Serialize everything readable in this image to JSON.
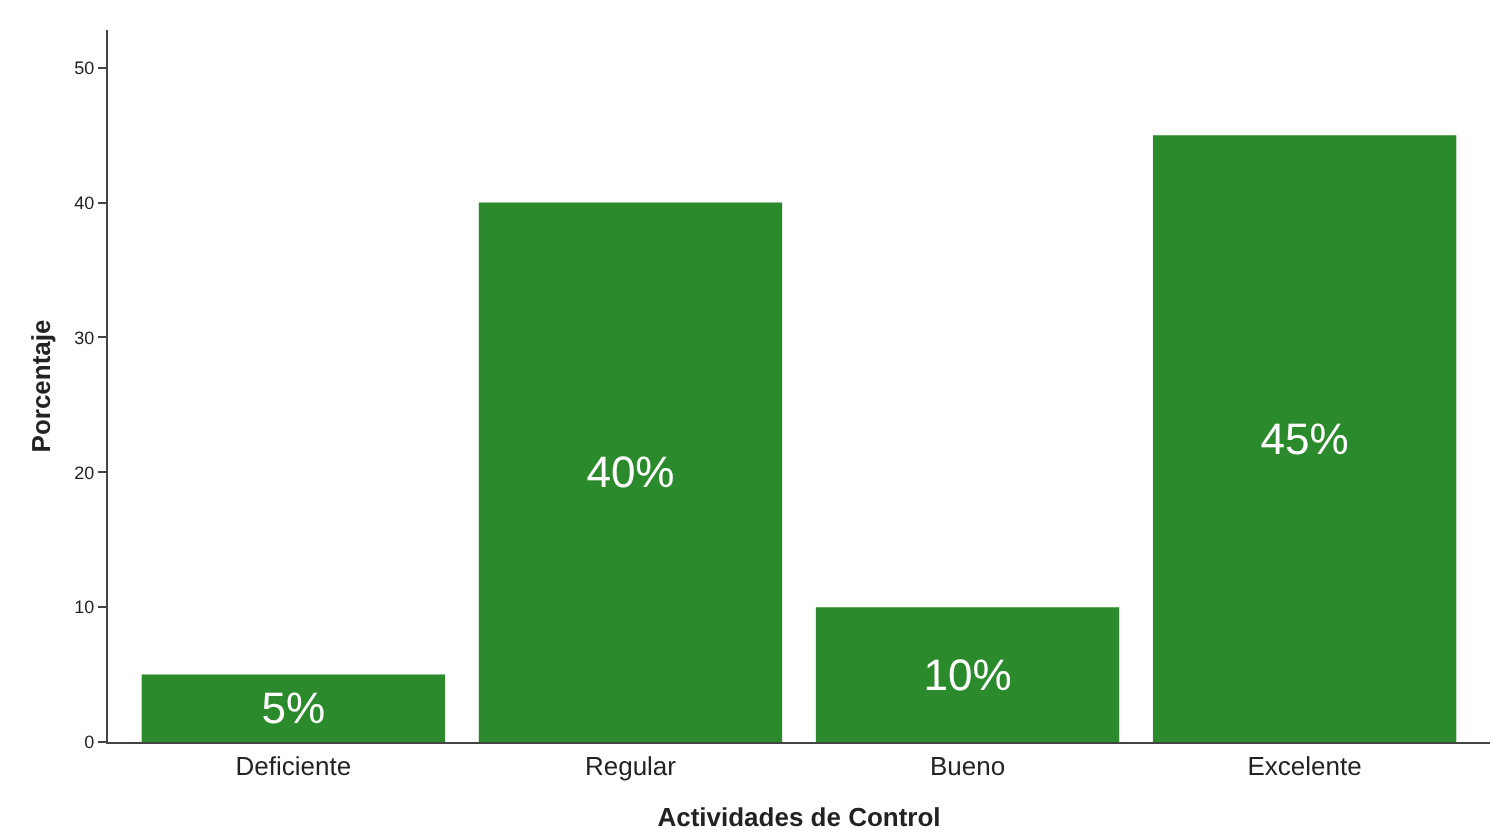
{
  "chart_data": {
    "type": "bar",
    "xlabel": "Actividades de Control",
    "ylabel": "Porcentaje",
    "categories": [
      "Deficiente",
      "Regular",
      "Bueno",
      "Excelente"
    ],
    "values": [
      5,
      40,
      10,
      45
    ],
    "color": "#2b8a2b",
    "value_labels": [
      "5%",
      "40%",
      "10%",
      "45%"
    ],
    "ylim": [
      0,
      52.8
    ],
    "yticks": [
      0,
      10,
      20,
      30,
      40,
      50
    ]
  }
}
